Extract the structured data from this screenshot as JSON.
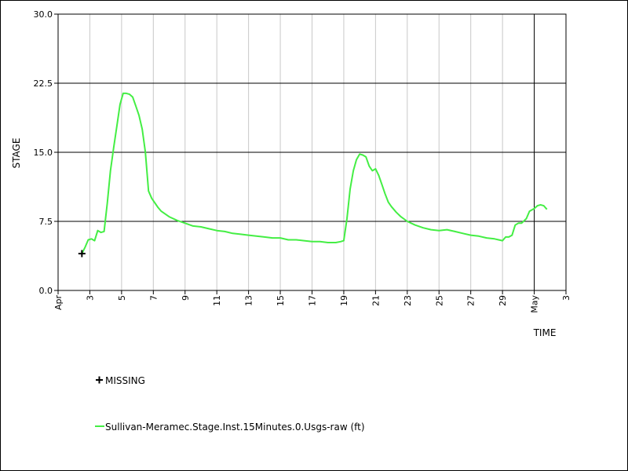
{
  "chart_data": {
    "type": "line",
    "ylabel": "STAGE",
    "xlabel": "TIME",
    "ylim": [
      0,
      30
    ],
    "xlim_days": [
      1,
      33
    ],
    "y_ticks": [
      {
        "value": 0,
        "label": "0.0"
      },
      {
        "value": 7.5,
        "label": "7.5"
      },
      {
        "value": 15,
        "label": "15.0"
      },
      {
        "value": 22.5,
        "label": "22.5"
      },
      {
        "value": 30,
        "label": "30.0"
      }
    ],
    "x_ticks": [
      {
        "day": 1,
        "label": "Apr"
      },
      {
        "day": 3,
        "label": "3"
      },
      {
        "day": 5,
        "label": "5"
      },
      {
        "day": 7,
        "label": "7"
      },
      {
        "day": 9,
        "label": "9"
      },
      {
        "day": 11,
        "label": "11"
      },
      {
        "day": 13,
        "label": "13"
      },
      {
        "day": 15,
        "label": "15"
      },
      {
        "day": 17,
        "label": "17"
      },
      {
        "day": 19,
        "label": "19"
      },
      {
        "day": 21,
        "label": "21"
      },
      {
        "day": 23,
        "label": "23"
      },
      {
        "day": 25,
        "label": "25"
      },
      {
        "day": 27,
        "label": "27"
      },
      {
        "day": 29,
        "label": "29"
      },
      {
        "day": 31,
        "label": "May"
      },
      {
        "day": 33,
        "label": "3"
      }
    ],
    "month_boundary_day": 31,
    "grid": true,
    "series": [
      {
        "name": "Sullivan-Meramec.Stage.Inst.15Minutes.0.Usgs-raw (ft)",
        "color": "#44ee44",
        "points": [
          [
            2.5,
            4.0
          ],
          [
            2.7,
            4.7
          ],
          [
            2.9,
            5.5
          ],
          [
            3.1,
            5.6
          ],
          [
            3.3,
            5.4
          ],
          [
            3.5,
            6.5
          ],
          [
            3.7,
            6.3
          ],
          [
            3.9,
            6.4
          ],
          [
            4.1,
            9.5
          ],
          [
            4.3,
            13.0
          ],
          [
            4.5,
            15.5
          ],
          [
            4.7,
            17.8
          ],
          [
            4.9,
            20.2
          ],
          [
            5.1,
            21.4
          ],
          [
            5.3,
            21.4
          ],
          [
            5.5,
            21.3
          ],
          [
            5.7,
            21.0
          ],
          [
            5.9,
            20.0
          ],
          [
            6.1,
            19.0
          ],
          [
            6.3,
            17.5
          ],
          [
            6.5,
            15.0
          ],
          [
            6.7,
            10.8
          ],
          [
            6.9,
            10.0
          ],
          [
            7.1,
            9.5
          ],
          [
            7.3,
            9.0
          ],
          [
            7.5,
            8.6
          ],
          [
            8.0,
            8.0
          ],
          [
            8.5,
            7.6
          ],
          [
            9.0,
            7.3
          ],
          [
            9.5,
            7.0
          ],
          [
            10.0,
            6.9
          ],
          [
            10.5,
            6.7
          ],
          [
            11.0,
            6.5
          ],
          [
            11.5,
            6.4
          ],
          [
            12.0,
            6.2
          ],
          [
            12.5,
            6.1
          ],
          [
            13.0,
            6.0
          ],
          [
            13.5,
            5.9
          ],
          [
            14.0,
            5.8
          ],
          [
            14.5,
            5.7
          ],
          [
            15.0,
            5.7
          ],
          [
            15.5,
            5.5
          ],
          [
            16.0,
            5.5
          ],
          [
            16.5,
            5.4
          ],
          [
            17.0,
            5.3
          ],
          [
            17.5,
            5.3
          ],
          [
            18.0,
            5.2
          ],
          [
            18.5,
            5.2
          ],
          [
            18.8,
            5.3
          ],
          [
            19.0,
            5.4
          ],
          [
            19.2,
            7.8
          ],
          [
            19.4,
            11.0
          ],
          [
            19.6,
            13.0
          ],
          [
            19.8,
            14.2
          ],
          [
            20.0,
            14.8
          ],
          [
            20.2,
            14.7
          ],
          [
            20.4,
            14.5
          ],
          [
            20.6,
            13.5
          ],
          [
            20.8,
            13.0
          ],
          [
            21.0,
            13.2
          ],
          [
            21.2,
            12.5
          ],
          [
            21.4,
            11.5
          ],
          [
            21.6,
            10.5
          ],
          [
            21.8,
            9.6
          ],
          [
            22.0,
            9.1
          ],
          [
            22.3,
            8.5
          ],
          [
            22.6,
            8.0
          ],
          [
            23.0,
            7.5
          ],
          [
            23.5,
            7.1
          ],
          [
            24.0,
            6.8
          ],
          [
            24.5,
            6.6
          ],
          [
            25.0,
            6.5
          ],
          [
            25.5,
            6.6
          ],
          [
            26.0,
            6.4
          ],
          [
            26.5,
            6.2
          ],
          [
            27.0,
            6.0
          ],
          [
            27.5,
            5.9
          ],
          [
            28.0,
            5.7
          ],
          [
            28.5,
            5.6
          ],
          [
            29.0,
            5.4
          ],
          [
            29.2,
            5.8
          ],
          [
            29.4,
            5.8
          ],
          [
            29.6,
            6.0
          ],
          [
            29.8,
            7.1
          ],
          [
            30.0,
            7.3
          ],
          [
            30.2,
            7.3
          ],
          [
            30.5,
            7.8
          ],
          [
            30.7,
            8.6
          ],
          [
            31.0,
            8.9
          ],
          [
            31.2,
            9.2
          ],
          [
            31.4,
            9.3
          ],
          [
            31.6,
            9.2
          ],
          [
            31.8,
            8.8
          ]
        ]
      }
    ],
    "missing_points": [
      [
        2.5,
        4.0
      ]
    ],
    "legend": [
      {
        "symbol": "cross",
        "label": "MISSING"
      },
      {
        "symbol": "line",
        "label": "Sullivan-Meramec.Stage.Inst.15Minutes.0.Usgs-raw (ft)"
      }
    ],
    "colors": {
      "series": "#44ee44",
      "major_grid": "#000000",
      "minor_grid": "#c8c8c8",
      "missing_marker": "#000000"
    }
  }
}
